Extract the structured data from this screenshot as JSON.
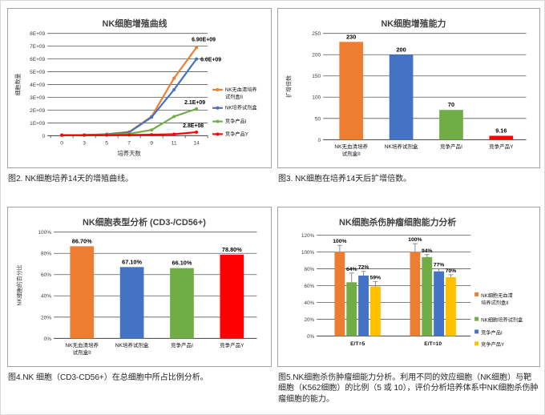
{
  "page": {
    "background": "#ffffff",
    "border": "#d9d9d9",
    "panel_border": "#a3a3a3"
  },
  "colors": {
    "orange": "#ED7D31",
    "blue": "#4472C4",
    "green": "#70AD47",
    "red": "#FF0000",
    "yellow": "#FFC000",
    "grid": "#595959",
    "axis": "#404040",
    "title": "#404040",
    "tick_text": "#404040",
    "label_text": "#000000",
    "error_bar": "#7f7f7f"
  },
  "chart_data": [
    {
      "id": "nk-proliferation-curve",
      "type": "line",
      "title": "NK细胞增殖曲线",
      "xlabel": "培养天数",
      "ylabel": "细胞数量",
      "x_ticks": [
        "0",
        "3",
        "5",
        "7",
        "9",
        "11",
        "14"
      ],
      "y_ticks": [
        "0",
        "1E+09",
        "2E+09",
        "3E+09",
        "4E+09",
        "5E+09",
        "6E+09",
        "7E+09",
        "8E+09"
      ],
      "ylim": [
        0,
        8000000000.0
      ],
      "grid": true,
      "legend_position": "right",
      "series": [
        {
          "name": "NK无血清培养\n试剂盒II",
          "color": "orange",
          "values": [
            50000000.0,
            60000000.0,
            120000000.0,
            300000000.0,
            1500000000.0,
            4500000000.0,
            6900000000.0
          ],
          "end_label": "6.90E+09"
        },
        {
          "name": "NK培养试剂盒",
          "color": "blue",
          "values": [
            50000000.0,
            60000000.0,
            110000000.0,
            260000000.0,
            1450000000.0,
            3600000000.0,
            6000000000.0
          ],
          "end_label": "6.0E+09"
        },
        {
          "name": "竞争产品I",
          "color": "green",
          "values": [
            50000000.0,
            50000000.0,
            90000000.0,
            150000000.0,
            450000000.0,
            1500000000.0,
            2100000000.0
          ],
          "end_label": "2.1E+09"
        },
        {
          "name": "竞争产品Y",
          "color": "red",
          "values": [
            40000000.0,
            40000000.0,
            50000000.0,
            60000000.0,
            80000000.0,
            120000000.0,
            280000000.0
          ],
          "end_label": "2.8E+08"
        }
      ],
      "caption": "图2. NK细胞培养14天的增殖曲线。"
    },
    {
      "id": "nk-expansion-fold",
      "type": "bar",
      "title": "NK细胞增殖能力",
      "xlabel": "",
      "ylabel": "扩增倍数",
      "categories": [
        "NK无血清培养\n试剂盒II",
        "NK培养试剂盒",
        "竞争产品I",
        "竞争产品Y"
      ],
      "values": [
        230,
        200,
        70,
        9.16
      ],
      "value_labels": [
        "230",
        "200",
        "70",
        "9.16"
      ],
      "bar_colors": [
        "orange",
        "blue",
        "green",
        "red"
      ],
      "y_ticks": [
        "0",
        "50",
        "100",
        "150",
        "200",
        "250"
      ],
      "ylim": [
        0,
        250
      ],
      "grid": true,
      "caption": "图3. NK细胞在培养14天后扩增倍数。"
    },
    {
      "id": "nk-phenotype",
      "type": "bar",
      "title": "NK细胞表型分析 (CD3-/CD56+)",
      "xlabel": "",
      "ylabel": "NK细胞的百分比",
      "categories": [
        "NK无血清培养\n试剂盒II",
        "NK培养试剂盒",
        "竞争产品I",
        "竞争产品Y"
      ],
      "values": [
        86.7,
        67.1,
        66.1,
        78.8
      ],
      "value_labels": [
        "86.70%",
        "67.10%",
        "66.10%",
        "78.80%"
      ],
      "bar_colors": [
        "orange",
        "blue",
        "green",
        "red"
      ],
      "y_ticks": [
        "0%",
        "20%",
        "40%",
        "60%",
        "80%",
        "100%"
      ],
      "ylim": [
        0,
        100
      ],
      "grid": true,
      "caption": "图4.NK 细胞（CD3-CD56+）在总细胞中所占比例分析。"
    },
    {
      "id": "nk-cytotoxicity",
      "type": "grouped-bar",
      "title": "NK细胞杀伤肿瘤细胞能力分析",
      "xlabel": "",
      "ylabel": "",
      "categories": [
        "E/T=5",
        "E/T=10"
      ],
      "y_ticks": [
        "0%",
        "20%",
        "40%",
        "60%",
        "80%",
        "100%",
        "120%"
      ],
      "ylim": [
        0,
        120
      ],
      "grid": true,
      "legend_position": "right",
      "series": [
        {
          "name": "NK细胞无血清\n培养试剂盒II",
          "color": "orange",
          "values": [
            100,
            100
          ],
          "value_labels": [
            "100%",
            "100%"
          ],
          "errors": [
            8,
            10
          ]
        },
        {
          "name": "NK细胞培养试剂盒",
          "color": "green",
          "values": [
            64,
            94
          ],
          "value_labels": [
            "64%",
            "94%"
          ],
          "errors": [
            11,
            3
          ]
        },
        {
          "name": "竞争产品I",
          "color": "blue",
          "values": [
            72,
            77
          ],
          "value_labels": [
            "72%",
            "77%"
          ],
          "errors": [
            5,
            3
          ]
        },
        {
          "name": "竞争产品Y",
          "color": "yellow",
          "values": [
            59,
            70
          ],
          "value_labels": [
            "59%",
            "70%"
          ],
          "errors": [
            6,
            3
          ]
        }
      ],
      "caption": "图5.NK细胞杀伤肿瘤细能力分析。利用不同的效应细胞（NK细胞）与靶细胞（K562细胞）的比例（5 或 10），评价分析培养体系中NK细胞杀伤肿瘤细胞的能力。"
    }
  ]
}
